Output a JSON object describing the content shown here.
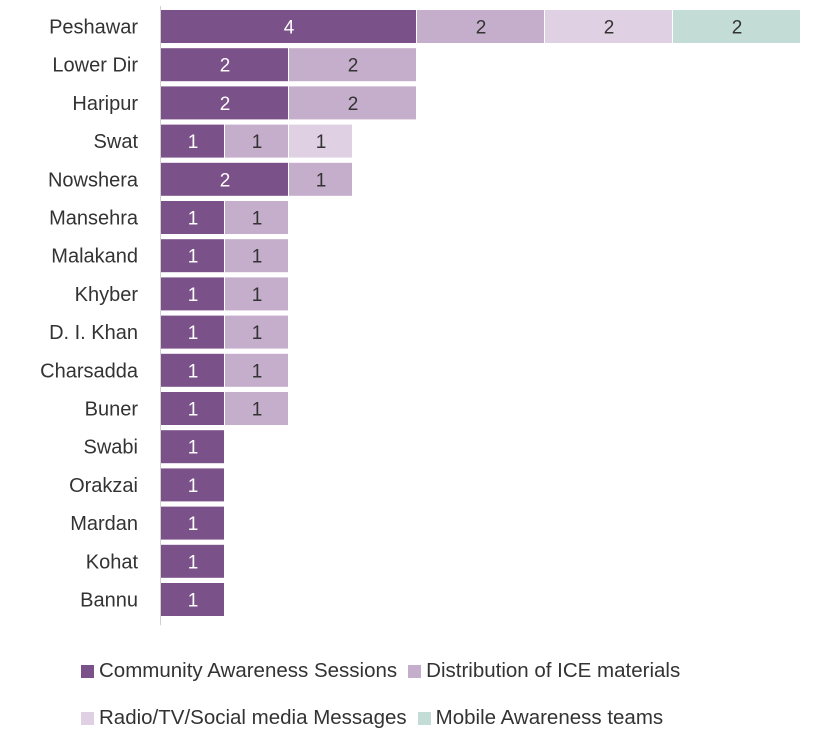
{
  "chart_data": {
    "type": "bar",
    "orientation": "horizontal",
    "stacked": true,
    "categories": [
      "Peshawar",
      "Lower Dir",
      "Haripur",
      "Swat",
      "Nowshera",
      "Mansehra",
      "Malakand",
      "Khyber",
      "D. I. Khan",
      "Charsadda",
      "Buner",
      "Swabi",
      "Orakzai",
      "Mardan",
      "Kohat",
      "Bannu"
    ],
    "series": [
      {
        "name": "Community Awareness Sessions",
        "color": "#7b5189",
        "label_color": "#ffffff",
        "values": [
          4,
          2,
          2,
          1,
          2,
          1,
          1,
          1,
          1,
          1,
          1,
          1,
          1,
          1,
          1,
          1
        ]
      },
      {
        "name": "Distribution of ICE materials",
        "color": "#c4aecb",
        "label_color": "#333333",
        "values": [
          2,
          2,
          2,
          1,
          1,
          1,
          1,
          1,
          1,
          1,
          1,
          0,
          0,
          0,
          0,
          0
        ]
      },
      {
        "name": "Radio/TV/Social media Messages",
        "color": "#dfd0e3",
        "label_color": "#333333",
        "values": [
          2,
          0,
          0,
          1,
          0,
          0,
          0,
          0,
          0,
          0,
          0,
          0,
          0,
          0,
          0,
          0
        ]
      },
      {
        "name": "Mobile Awareness teams",
        "color": "#c3ddd6",
        "label_color": "#333333",
        "values": [
          2,
          0,
          0,
          0,
          0,
          0,
          0,
          0,
          0,
          0,
          0,
          0,
          0,
          0,
          0,
          0
        ]
      }
    ],
    "xlim": [
      0,
      10
    ],
    "grid": false,
    "axis_line_color": "#d0d0d0",
    "legend_position": "bottom",
    "title": "",
    "xlabel": "",
    "ylabel": ""
  },
  "legend": [
    {
      "name": "Community Awareness Sessions",
      "color": "#7b5189"
    },
    {
      "name": "Distribution of ICE materials",
      "color": "#c4aecb"
    },
    {
      "name": "Radio/TV/Social media Messages",
      "color": "#dfd0e3"
    },
    {
      "name": "Mobile Awareness teams",
      "color": "#c3ddd6"
    }
  ]
}
